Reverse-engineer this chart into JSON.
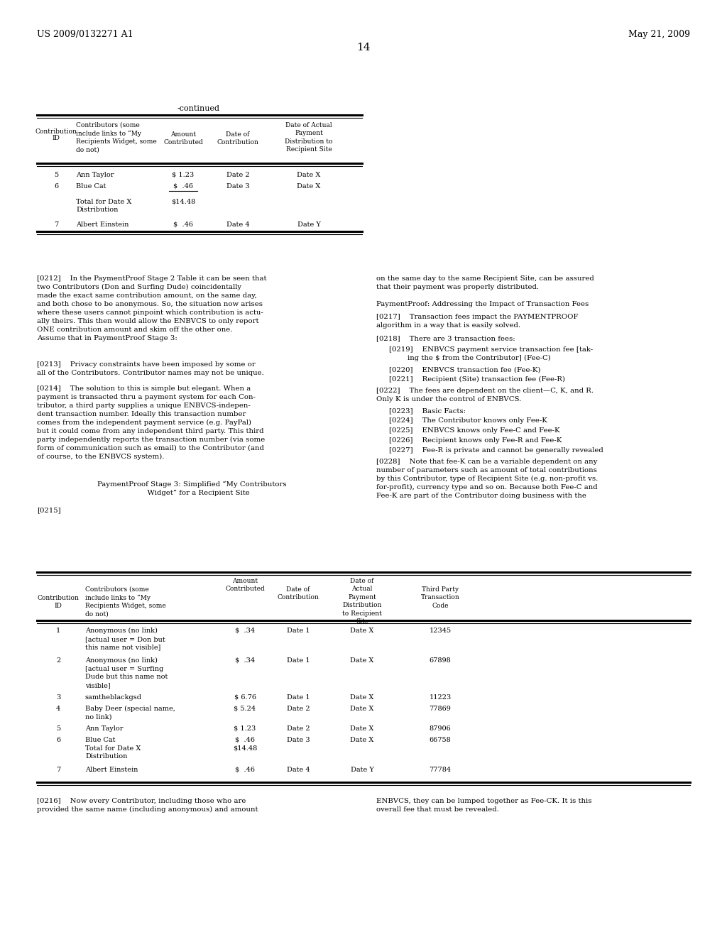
{
  "bg_color": "#ffffff",
  "header_left": "US 2009/0132271 A1",
  "header_right": "May 21, 2009",
  "page_number": "14"
}
